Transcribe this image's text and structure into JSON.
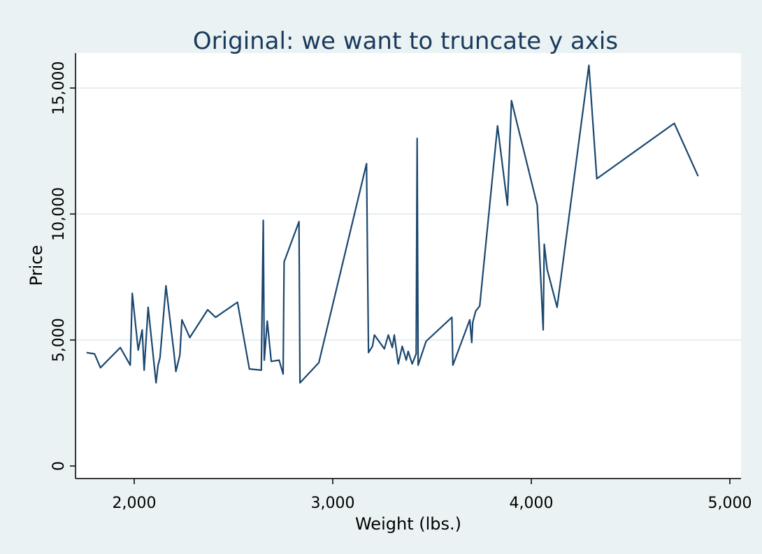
{
  "chart_data": {
    "type": "line",
    "title": "Original: we want to truncate y axis",
    "xlabel": "Weight (lbs.)",
    "ylabel": "Price",
    "xlim": [
      1760,
      5000
    ],
    "ylim": [
      0,
      16000
    ],
    "xticks": [
      2000,
      3000,
      4000,
      5000
    ],
    "xtick_labels": [
      "2,000",
      "3,000",
      "4,000",
      "5,000"
    ],
    "yticks": [
      0,
      5000,
      10000,
      15000
    ],
    "ytick_labels": [
      "0",
      "5,000",
      "10,000",
      "15,000"
    ],
    "grid": true,
    "line_color": "#1a476f",
    "background_color": "#eaf2f3",
    "plot_background": "#ffffff",
    "gridline_color": "#e6eef0",
    "series": [
      {
        "x": [
          1760,
          1800,
          1830,
          1930,
          1980,
          1990,
          2020,
          2040,
          2050,
          2070,
          2110,
          2120,
          2130,
          2160,
          2200,
          2210,
          2230,
          2240,
          2280,
          2370,
          2410,
          2520,
          2580,
          2640,
          2650,
          2655,
          2670,
          2690,
          2730,
          2750,
          2755,
          2830,
          2835,
          2930,
          3170,
          3180,
          3200,
          3210,
          3260,
          3280,
          3300,
          3310,
          3330,
          3350,
          3370,
          3380,
          3400,
          3420,
          3425,
          3430,
          3470,
          3600,
          3605,
          3690,
          3700,
          3705,
          3720,
          3740,
          3830,
          3880,
          3900,
          4030,
          4060,
          4065,
          4080,
          4130,
          4290,
          4330,
          4720,
          4840
        ],
        "y": [
          4500,
          4450,
          3900,
          4700,
          4000,
          6850,
          4600,
          5400,
          3800,
          6300,
          3300,
          4000,
          4300,
          7150,
          4500,
          3750,
          4400,
          5800,
          5100,
          6200,
          5900,
          6500,
          3850,
          3800,
          9750,
          4200,
          5750,
          4150,
          4200,
          3650,
          8100,
          9700,
          3300,
          4100,
          12000,
          4500,
          4750,
          5200,
          4650,
          5200,
          4700,
          5200,
          4050,
          4750,
          4200,
          4550,
          4050,
          4450,
          13000,
          4000,
          4950,
          5900,
          4000,
          5800,
          4900,
          5700,
          6150,
          6350,
          13500,
          10350,
          14500,
          10350,
          5400,
          8800,
          7800,
          6300,
          15900,
          11400,
          13600,
          11500
        ]
      }
    ]
  }
}
